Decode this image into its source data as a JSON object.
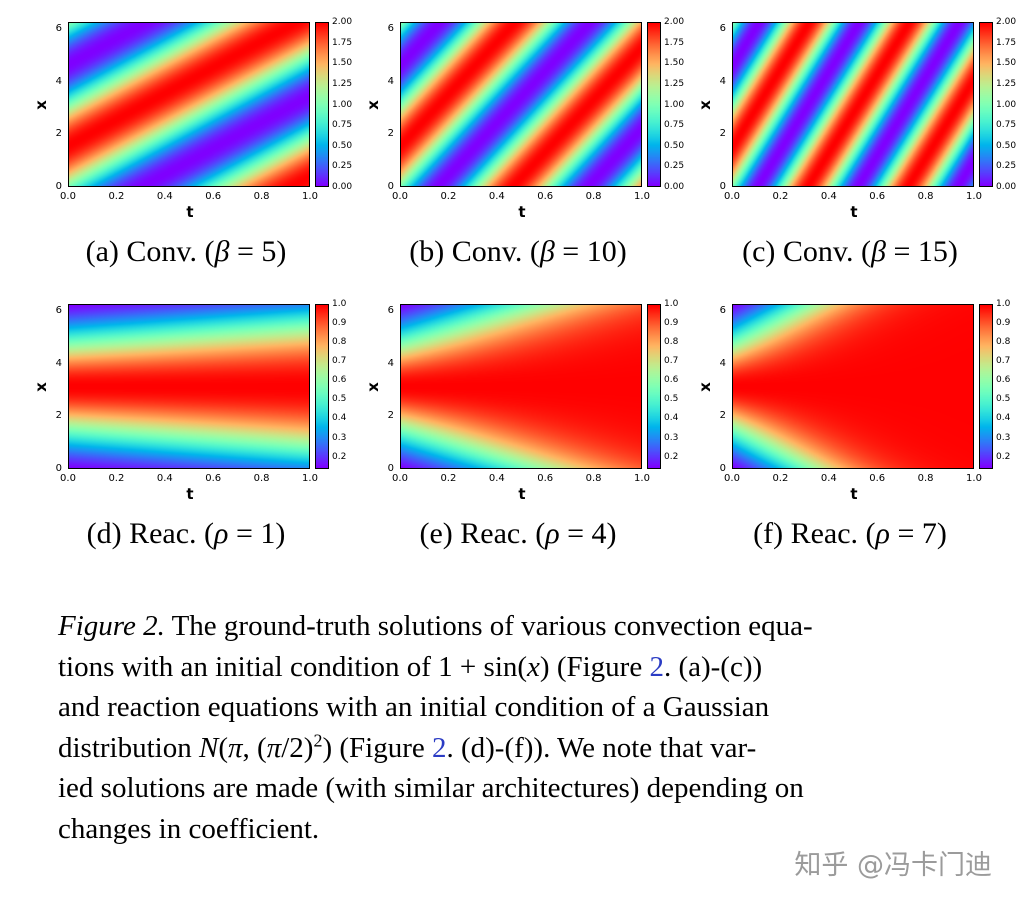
{
  "page": {
    "background": "#ffffff",
    "link_color": "#2b3cc4",
    "watermark": {
      "text": "知乎 @冯卡门迪",
      "color": "#9b9b9b"
    }
  },
  "chart_data": [
    {
      "id": "a",
      "type": "heatmap",
      "equation": "convection",
      "param": {
        "symbol": "β",
        "value": 5
      },
      "xlabel": "t",
      "ylabel": "x",
      "x_range": [
        0,
        1
      ],
      "y_range": [
        0,
        6.2832
      ],
      "x_ticks": [
        "0.0",
        "0.2",
        "0.4",
        "0.6",
        "0.8",
        "1.0"
      ],
      "y_ticks": [
        "0",
        "2",
        "4",
        "6"
      ],
      "vmin": 0.0,
      "vmax": 2.0,
      "colorbar_ticks": [
        "0.00",
        "0.25",
        "0.50",
        "0.75",
        "1.00",
        "1.25",
        "1.50",
        "1.75",
        "2.00"
      ],
      "colormap": "rainbow",
      "caption_segments": [
        {
          "style": "normal",
          "text": "(a) Conv. ("
        },
        {
          "style": "math",
          "text": "β"
        },
        {
          "style": "normal",
          "text": " = 5)"
        }
      ]
    },
    {
      "id": "b",
      "type": "heatmap",
      "equation": "convection",
      "param": {
        "symbol": "β",
        "value": 10
      },
      "xlabel": "t",
      "ylabel": "x",
      "x_range": [
        0,
        1
      ],
      "y_range": [
        0,
        6.2832
      ],
      "x_ticks": [
        "0.0",
        "0.2",
        "0.4",
        "0.6",
        "0.8",
        "1.0"
      ],
      "y_ticks": [
        "0",
        "2",
        "4",
        "6"
      ],
      "vmin": 0.0,
      "vmax": 2.0,
      "colorbar_ticks": [
        "0.00",
        "0.25",
        "0.50",
        "0.75",
        "1.00",
        "1.25",
        "1.50",
        "1.75",
        "2.00"
      ],
      "colormap": "rainbow",
      "caption_segments": [
        {
          "style": "normal",
          "text": "(b) Conv. ("
        },
        {
          "style": "math",
          "text": "β"
        },
        {
          "style": "normal",
          "text": " = 10)"
        }
      ]
    },
    {
      "id": "c",
      "type": "heatmap",
      "equation": "convection",
      "param": {
        "symbol": "β",
        "value": 15
      },
      "xlabel": "t",
      "ylabel": "x",
      "x_range": [
        0,
        1
      ],
      "y_range": [
        0,
        6.2832
      ],
      "x_ticks": [
        "0.0",
        "0.2",
        "0.4",
        "0.6",
        "0.8",
        "1.0"
      ],
      "y_ticks": [
        "0",
        "2",
        "4",
        "6"
      ],
      "vmin": 0.0,
      "vmax": 2.0,
      "colorbar_ticks": [
        "0.00",
        "0.25",
        "0.50",
        "0.75",
        "1.00",
        "1.25",
        "1.50",
        "1.75",
        "2.00"
      ],
      "colormap": "rainbow",
      "caption_segments": [
        {
          "style": "normal",
          "text": "(c) Conv. ("
        },
        {
          "style": "math",
          "text": "β"
        },
        {
          "style": "normal",
          "text": " = 15)"
        }
      ]
    },
    {
      "id": "d",
      "type": "heatmap",
      "equation": "reaction",
      "param": {
        "symbol": "ρ",
        "value": 1
      },
      "xlabel": "t",
      "ylabel": "x",
      "x_range": [
        0,
        1
      ],
      "y_range": [
        0,
        6.2832
      ],
      "x_ticks": [
        "0.0",
        "0.2",
        "0.4",
        "0.6",
        "0.8",
        "1.0"
      ],
      "y_ticks": [
        "0",
        "2",
        "4",
        "6"
      ],
      "vmin": 0.1353,
      "vmax": 1.0,
      "colorbar_ticks": [
        "0.2",
        "0.3",
        "0.4",
        "0.5",
        "0.6",
        "0.7",
        "0.8",
        "0.9",
        "1.0"
      ],
      "colormap": "rainbow",
      "caption_segments": [
        {
          "style": "normal",
          "text": "(d) Reac. ("
        },
        {
          "style": "math",
          "text": "ρ"
        },
        {
          "style": "normal",
          "text": " = 1)"
        }
      ]
    },
    {
      "id": "e",
      "type": "heatmap",
      "equation": "reaction",
      "param": {
        "symbol": "ρ",
        "value": 4
      },
      "xlabel": "t",
      "ylabel": "x",
      "x_range": [
        0,
        1
      ],
      "y_range": [
        0,
        6.2832
      ],
      "x_ticks": [
        "0.0",
        "0.2",
        "0.4",
        "0.6",
        "0.8",
        "1.0"
      ],
      "y_ticks": [
        "0",
        "2",
        "4",
        "6"
      ],
      "vmin": 0.1353,
      "vmax": 1.0,
      "colorbar_ticks": [
        "0.2",
        "0.3",
        "0.4",
        "0.5",
        "0.6",
        "0.7",
        "0.8",
        "0.9",
        "1.0"
      ],
      "colormap": "rainbow",
      "caption_segments": [
        {
          "style": "normal",
          "text": "(e) Reac. ("
        },
        {
          "style": "math",
          "text": "ρ"
        },
        {
          "style": "normal",
          "text": " = 4)"
        }
      ]
    },
    {
      "id": "f",
      "type": "heatmap",
      "equation": "reaction",
      "param": {
        "symbol": "ρ",
        "value": 7
      },
      "xlabel": "t",
      "ylabel": "x",
      "x_range": [
        0,
        1
      ],
      "y_range": [
        0,
        6.2832
      ],
      "x_ticks": [
        "0.0",
        "0.2",
        "0.4",
        "0.6",
        "0.8",
        "1.0"
      ],
      "y_ticks": [
        "0",
        "2",
        "4",
        "6"
      ],
      "vmin": 0.1353,
      "vmax": 1.0,
      "colorbar_ticks": [
        "0.2",
        "0.3",
        "0.4",
        "0.5",
        "0.6",
        "0.7",
        "0.8",
        "0.9",
        "1.0"
      ],
      "colormap": "rainbow",
      "caption_segments": [
        {
          "style": "normal",
          "text": "(f) Reac. ("
        },
        {
          "style": "math",
          "text": "ρ"
        },
        {
          "style": "normal",
          "text": " = 7)"
        }
      ]
    }
  ],
  "figure_caption": {
    "segments": [
      {
        "style": "italic",
        "text": "Figure 2."
      },
      {
        "style": "normal",
        "text": " The ground-truth solutions of various convection equa-"
      },
      {
        "style": "break"
      },
      {
        "style": "normal",
        "text": "tions with an initial condition of 1 + sin("
      },
      {
        "style": "math",
        "text": "x"
      },
      {
        "style": "normal",
        "text": ") (Figure "
      },
      {
        "style": "link",
        "text": "2"
      },
      {
        "style": "normal",
        "text": ". (a)-(c))"
      },
      {
        "style": "break"
      },
      {
        "style": "normal",
        "text": "and reaction equations with an initial condition of a Gaussian"
      },
      {
        "style": "break"
      },
      {
        "style": "normal",
        "text": "distribution "
      },
      {
        "style": "math",
        "text": "N"
      },
      {
        "style": "normal",
        "text": "("
      },
      {
        "style": "math",
        "text": "π"
      },
      {
        "style": "normal",
        "text": ", ("
      },
      {
        "style": "math",
        "text": "π"
      },
      {
        "style": "normal",
        "text": "/2)"
      },
      {
        "style": "sup",
        "text": "2"
      },
      {
        "style": "normal",
        "text": ") (Figure "
      },
      {
        "style": "link",
        "text": "2"
      },
      {
        "style": "normal",
        "text": ". (d)-(f)).  We note that var-"
      },
      {
        "style": "break"
      },
      {
        "style": "normal",
        "text": "ied solutions are made (with similar architectures) depending on"
      },
      {
        "style": "break"
      },
      {
        "style": "normal",
        "text": "changes in coefficient."
      }
    ]
  }
}
